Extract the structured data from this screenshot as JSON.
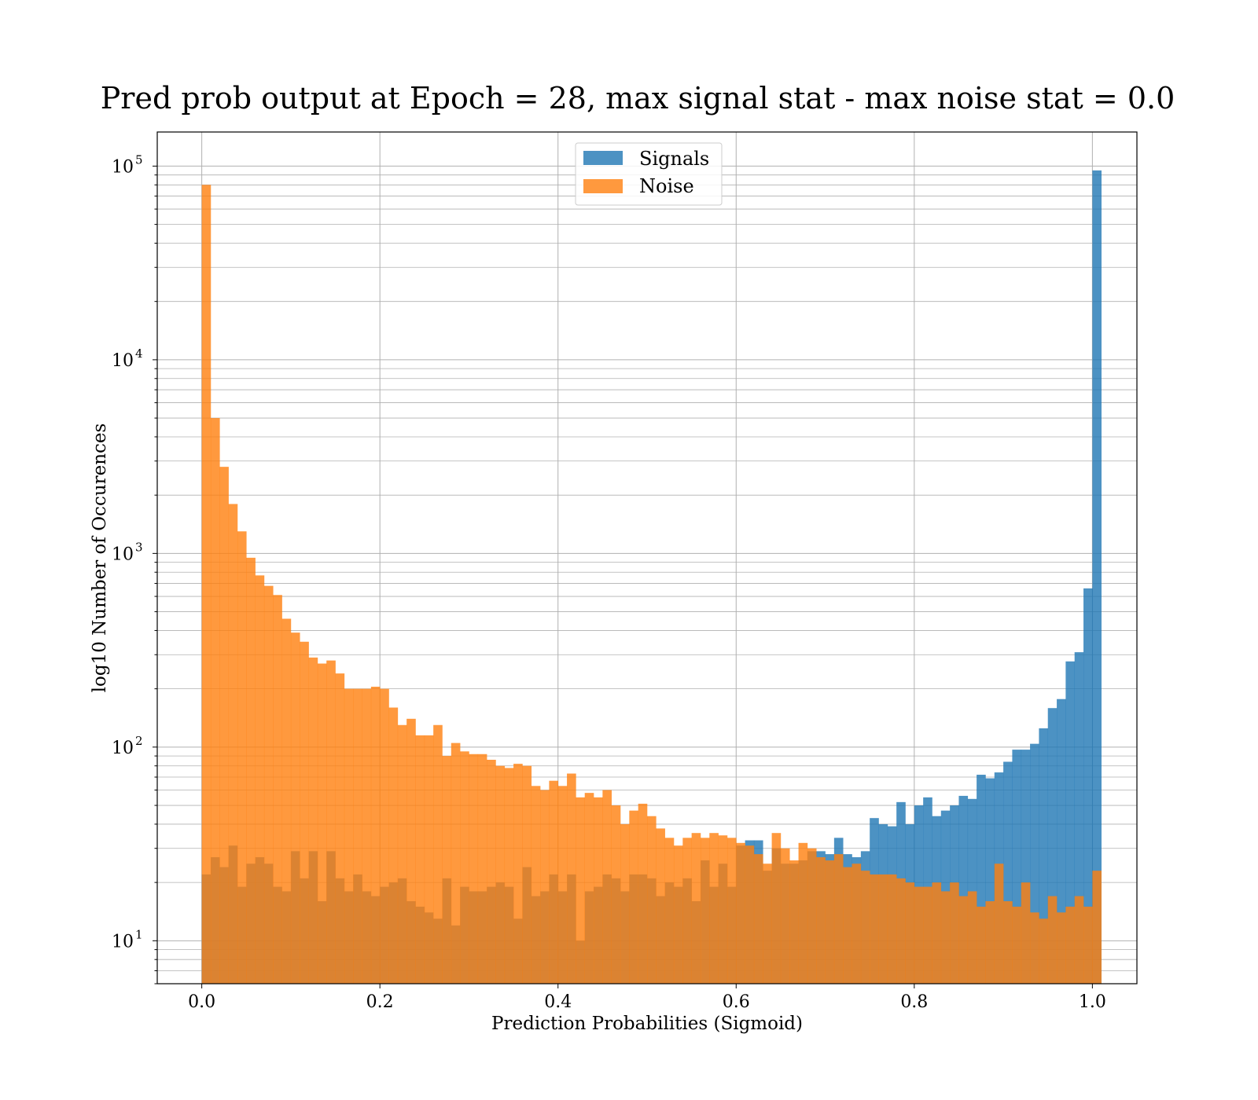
{
  "chart_data": {
    "type": "bar",
    "title": "Pred prob output at Epoch = 28, max signal stat - max noise stat = 0.0",
    "xlabel": "Prediction Probabilities (Sigmoid)",
    "ylabel": "log10 Number of Occurences",
    "x_scale": "linear",
    "y_scale": "log",
    "xlim": [
      -0.05,
      1.05
    ],
    "ylim": [
      6,
      150000
    ],
    "x_ticks": [
      0.0,
      0.2,
      0.4,
      0.6,
      0.8,
      1.0
    ],
    "x_tick_labels": [
      "0.0",
      "0.2",
      "0.4",
      "0.6",
      "0.8",
      "1.0"
    ],
    "y_ticks": [
      10,
      100,
      1000,
      10000,
      100000
    ],
    "y_tick_labels": [
      {
        "base": "10",
        "exp": "1"
      },
      {
        "base": "10",
        "exp": "2"
      },
      {
        "base": "10",
        "exp": "3"
      },
      {
        "base": "10",
        "exp": "4"
      },
      {
        "base": "10",
        "exp": "5"
      }
    ],
    "grid": true,
    "legend_position": "top-center",
    "bin_start": 0.0,
    "bin_width": 0.01,
    "series": [
      {
        "name": "Signals",
        "color": "#1f77b4",
        "alpha": 0.8,
        "values": [
          22,
          27,
          24,
          31,
          19,
          25,
          27,
          25,
          19,
          18,
          29,
          21,
          29,
          16,
          29,
          21,
          18,
          22,
          18,
          17,
          19,
          20,
          21,
          16,
          15,
          14,
          13,
          21,
          12,
          19,
          18,
          18,
          19,
          20,
          19,
          13,
          24,
          17,
          18,
          22,
          18,
          22,
          10,
          18,
          19,
          22,
          21,
          18,
          22,
          22,
          21,
          17,
          20,
          19,
          21,
          16,
          26,
          19,
          25,
          19,
          31,
          33,
          33,
          23,
          30,
          25,
          25,
          26,
          29,
          29,
          28,
          34,
          28,
          27,
          29,
          43,
          40,
          39,
          52,
          40,
          50,
          55,
          44,
          47,
          50,
          56,
          54,
          72,
          69,
          74,
          84,
          97,
          97,
          104,
          125,
          159,
          177,
          277,
          309,
          660,
          95000
        ]
      },
      {
        "name": "Noise",
        "color": "#ff7f0e",
        "alpha": 0.8,
        "values": [
          80000,
          5000,
          2800,
          1800,
          1300,
          950,
          770,
          680,
          610,
          460,
          390,
          350,
          290,
          270,
          280,
          240,
          200,
          200,
          200,
          205,
          200,
          160,
          130,
          140,
          115,
          115,
          130,
          90,
          105,
          95,
          92,
          92,
          86,
          80,
          78,
          82,
          80,
          63,
          60,
          67,
          63,
          73,
          55,
          58,
          55,
          60,
          50,
          40,
          47,
          51,
          44,
          38,
          34,
          31,
          34,
          36,
          34,
          36,
          35,
          34,
          32,
          31,
          28,
          25,
          36,
          30,
          26,
          32,
          30,
          27,
          26,
          28,
          24,
          25,
          23,
          22,
          22,
          22,
          21,
          20,
          19,
          19,
          20,
          18,
          20,
          17,
          18,
          15,
          16,
          25,
          16,
          15,
          20,
          14,
          13,
          17,
          14,
          15,
          17,
          15,
          23
        ]
      }
    ]
  }
}
